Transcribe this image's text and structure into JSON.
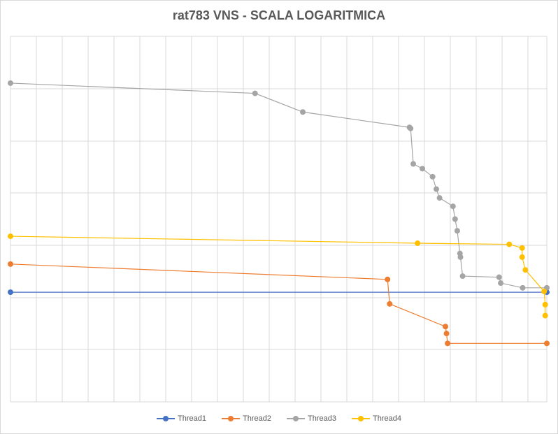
{
  "chart_data": {
    "type": "line",
    "title": "rat783 VNS - SCALA LOGARITMICA",
    "xlabel": "",
    "ylabel": "",
    "y_scale": "log",
    "grid": true,
    "legend_position": "bottom",
    "x_range": [
      0,
      1
    ],
    "y_range": [
      0,
      1
    ],
    "series": [
      {
        "name": "Thread1",
        "color": "#4472c4",
        "x": [
          0.0,
          1.0
        ],
        "y": [
          0.3,
          0.3
        ]
      },
      {
        "name": "Thread2",
        "color": "#ed7d31",
        "x": [
          0.0,
          0.703,
          0.707,
          0.811,
          0.813,
          0.815,
          1.0
        ],
        "y": [
          0.377,
          0.335,
          0.268,
          0.206,
          0.187,
          0.16,
          0.16
        ]
      },
      {
        "name": "Thread3",
        "color": "#a5a5a5",
        "x": [
          0.0,
          0.456,
          0.545,
          0.744,
          0.746,
          0.751,
          0.768,
          0.787,
          0.794,
          0.8,
          0.825,
          0.829,
          0.833,
          0.838,
          0.839,
          0.843,
          0.911,
          0.914,
          0.955,
          1.0
        ],
        "y": [
          0.872,
          0.844,
          0.793,
          0.751,
          0.748,
          0.651,
          0.638,
          0.616,
          0.582,
          0.558,
          0.535,
          0.5,
          0.468,
          0.406,
          0.396,
          0.344,
          0.341,
          0.325,
          0.312,
          0.312
        ]
      },
      {
        "name": "Thread4",
        "color": "#ffc000",
        "x": [
          0.0,
          0.759,
          0.93,
          0.954,
          0.954,
          0.96,
          0.995,
          0.997,
          0.997
        ],
        "y": [
          0.453,
          0.434,
          0.431,
          0.421,
          0.396,
          0.361,
          0.302,
          0.266,
          0.236
        ]
      }
    ]
  }
}
